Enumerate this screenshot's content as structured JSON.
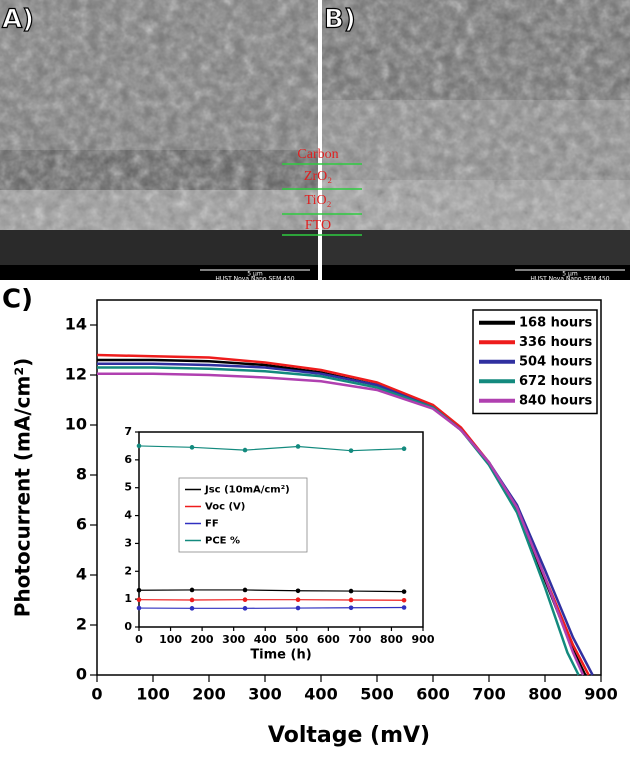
{
  "panels": {
    "a": "A)",
    "b": "B)",
    "c": "C)"
  },
  "sem": {
    "layers": [
      "Carbon",
      "ZrO₂",
      "TiO₂",
      "FTO"
    ],
    "scale_bar": "5 μm",
    "instrument": "HUST Nova Nano SEM 450"
  },
  "chart_data": [
    {
      "type": "line",
      "xlabel": "Voltage (mV)",
      "ylabel": "Photocurrent (mA/cm²)",
      "xlim": [
        0,
        900
      ],
      "xticks": [
        0,
        100,
        200,
        300,
        400,
        500,
        600,
        700,
        800,
        900
      ],
      "ylim": [
        0,
        15
      ],
      "yticks": [
        0,
        2,
        4,
        6,
        8,
        10,
        12,
        14
      ],
      "legend": "upper right",
      "markers": false,
      "series": [
        {
          "name": "168 hours",
          "color": "#000000",
          "x": [
            0,
            100,
            200,
            300,
            400,
            500,
            600,
            650,
            700,
            750,
            800,
            850,
            872
          ],
          "values": [
            12.6,
            12.6,
            12.55,
            12.4,
            12.1,
            11.6,
            10.7,
            9.8,
            8.5,
            6.6,
            3.8,
            1.0,
            0
          ]
        },
        {
          "name": "336 hours",
          "color": "#ee1c1c",
          "x": [
            0,
            100,
            200,
            300,
            400,
            500,
            600,
            650,
            700,
            750,
            800,
            850,
            878
          ],
          "values": [
            12.8,
            12.75,
            12.7,
            12.5,
            12.2,
            11.7,
            10.8,
            9.9,
            8.5,
            6.7,
            3.9,
            1.2,
            0
          ]
        },
        {
          "name": "504 hours",
          "color": "#3030a0",
          "x": [
            0,
            100,
            200,
            300,
            400,
            500,
            600,
            650,
            700,
            750,
            800,
            850,
            885
          ],
          "values": [
            12.45,
            12.45,
            12.4,
            12.3,
            12.05,
            11.6,
            10.7,
            9.8,
            8.5,
            6.8,
            4.2,
            1.5,
            0
          ]
        },
        {
          "name": "672 hours",
          "color": "#138a7e",
          "x": [
            0,
            100,
            200,
            300,
            400,
            500,
            600,
            650,
            700,
            750,
            800,
            840,
            860
          ],
          "values": [
            12.3,
            12.3,
            12.25,
            12.15,
            11.95,
            11.5,
            10.7,
            9.8,
            8.4,
            6.5,
            3.5,
            0.9,
            0
          ]
        },
        {
          "name": "840 hours",
          "color": "#b040b0",
          "x": [
            0,
            100,
            200,
            300,
            400,
            500,
            600,
            650,
            700,
            750,
            800,
            850,
            868
          ],
          "values": [
            12.05,
            12.05,
            12.0,
            11.9,
            11.75,
            11.4,
            10.65,
            9.8,
            8.5,
            6.7,
            3.9,
            0.9,
            0
          ]
        }
      ]
    },
    {
      "type": "line",
      "xlabel": "Time (h)",
      "xlim": [
        0,
        900
      ],
      "xticks": [
        0,
        100,
        200,
        300,
        400,
        500,
        600,
        700,
        800,
        900
      ],
      "ylim": [
        0,
        7
      ],
      "yticks": [
        0,
        1,
        2,
        3,
        4,
        5,
        6,
        7
      ],
      "legend": "center left",
      "markers": true,
      "series": [
        {
          "name": "Jsc (10mA/cm²)",
          "color": "#000000",
          "x": [
            0,
            168,
            336,
            504,
            672,
            840
          ],
          "values": [
            1.32,
            1.33,
            1.33,
            1.3,
            1.29,
            1.27
          ]
        },
        {
          "name": "Voc (V)",
          "color": "#ee1c1c",
          "x": [
            0,
            168,
            336,
            504,
            672,
            840
          ],
          "values": [
            0.98,
            0.97,
            0.98,
            0.98,
            0.97,
            0.96
          ]
        },
        {
          "name": "FF",
          "color": "#3030c0",
          "x": [
            0,
            168,
            336,
            504,
            672,
            840
          ],
          "values": [
            0.68,
            0.67,
            0.67,
            0.68,
            0.69,
            0.7
          ]
        },
        {
          "name": "PCE %",
          "color": "#138a7e",
          "x": [
            0,
            168,
            336,
            504,
            672,
            840
          ],
          "values": [
            6.5,
            6.45,
            6.35,
            6.48,
            6.33,
            6.4
          ]
        }
      ]
    }
  ]
}
